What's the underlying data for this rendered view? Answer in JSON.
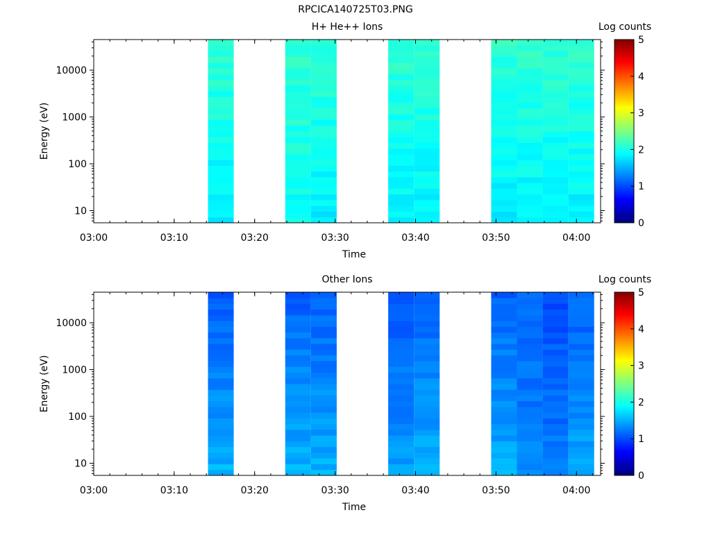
{
  "page_title": "RPCICA140725T03.PNG",
  "colors": {
    "colormap": [
      "#00007f",
      "#0000ff",
      "#007fff",
      "#00ffff",
      "#7fff7f",
      "#ffff00",
      "#ff7f00",
      "#ff0000",
      "#7f0000"
    ]
  },
  "chart_data": [
    {
      "type": "heatmap",
      "title": "H+ He++ Ions",
      "xlabel": "Time",
      "ylabel": "Energy (eV)",
      "x_range": [
        "03:00",
        "04:03"
      ],
      "x_ticks": [
        "03:00",
        "03:10",
        "03:20",
        "03:30",
        "03:40",
        "03:50",
        "04:00"
      ],
      "y_scale": "log",
      "y_range": [
        5.5,
        45000
      ],
      "y_ticks": [
        "10",
        "100",
        "1000",
        "10000"
      ],
      "colorbar": {
        "label": "Log counts",
        "range": [
          0,
          5
        ],
        "ticks": [
          "0",
          "1",
          "2",
          "3",
          "4",
          "5"
        ]
      },
      "data_intervals": [
        {
          "start": "03:14:12",
          "end": "03:17:24",
          "log_counts_low_energy": 1.8,
          "log_counts_high_energy": 2.1
        },
        {
          "start": "03:23:48",
          "end": "03:27:00",
          "log_counts_low_energy": 1.9,
          "log_counts_high_energy": 2.1
        },
        {
          "start": "03:27:00",
          "end": "03:30:12",
          "log_counts_low_energy": 1.8,
          "log_counts_high_energy": 2.1
        },
        {
          "start": "03:36:36",
          "end": "03:39:48",
          "log_counts_low_energy": 1.8,
          "log_counts_high_energy": 2.1
        },
        {
          "start": "03:39:48",
          "end": "03:43:00",
          "log_counts_low_energy": 1.8,
          "log_counts_high_energy": 2.1
        },
        {
          "start": "03:49:24",
          "end": "03:52:36",
          "log_counts_low_energy": 1.8,
          "log_counts_high_energy": 2.1
        },
        {
          "start": "03:52:36",
          "end": "03:55:48",
          "log_counts_low_energy": 1.8,
          "log_counts_high_energy": 2.1
        },
        {
          "start": "03:55:48",
          "end": "03:59:00",
          "log_counts_low_energy": 1.8,
          "log_counts_high_energy": 2.1
        },
        {
          "start": "03:59:00",
          "end": "04:02:12",
          "log_counts_low_energy": 1.8,
          "log_counts_high_energy": 2.1
        }
      ]
    },
    {
      "type": "heatmap",
      "title": "Other Ions",
      "xlabel": "Time",
      "ylabel": "Energy (eV)",
      "x_range": [
        "03:00",
        "04:03"
      ],
      "x_ticks": [
        "03:00",
        "03:10",
        "03:20",
        "03:30",
        "03:40",
        "03:50",
        "04:00"
      ],
      "y_scale": "log",
      "y_range": [
        5.5,
        45000
      ],
      "y_ticks": [
        "10",
        "100",
        "1000",
        "10000"
      ],
      "colorbar": {
        "label": "Log counts",
        "range": [
          0,
          5
        ],
        "ticks": [
          "0",
          "1",
          "2",
          "3",
          "4",
          "5"
        ]
      },
      "data_intervals": [
        {
          "start": "03:14:12",
          "end": "03:17:24",
          "log_counts_low_energy": 1.5,
          "log_counts_high_energy": 1.1
        },
        {
          "start": "03:23:48",
          "end": "03:27:00",
          "log_counts_low_energy": 1.5,
          "log_counts_high_energy": 1.1
        },
        {
          "start": "03:27:00",
          "end": "03:30:12",
          "log_counts_low_energy": 1.5,
          "log_counts_high_energy": 1.1
        },
        {
          "start": "03:36:36",
          "end": "03:39:48",
          "log_counts_low_energy": 1.4,
          "log_counts_high_energy": 1.05
        },
        {
          "start": "03:39:48",
          "end": "03:43:00",
          "log_counts_low_energy": 1.5,
          "log_counts_high_energy": 1.1
        },
        {
          "start": "03:49:24",
          "end": "03:52:36",
          "log_counts_low_energy": 1.5,
          "log_counts_high_energy": 1.1
        },
        {
          "start": "03:52:36",
          "end": "03:55:48",
          "log_counts_low_energy": 1.3,
          "log_counts_high_energy": 1.1
        },
        {
          "start": "03:55:48",
          "end": "03:59:00",
          "log_counts_low_energy": 1.25,
          "log_counts_high_energy": 1.0
        },
        {
          "start": "03:59:00",
          "end": "04:02:12",
          "log_counts_low_energy": 1.45,
          "log_counts_high_energy": 1.1
        }
      ]
    }
  ]
}
